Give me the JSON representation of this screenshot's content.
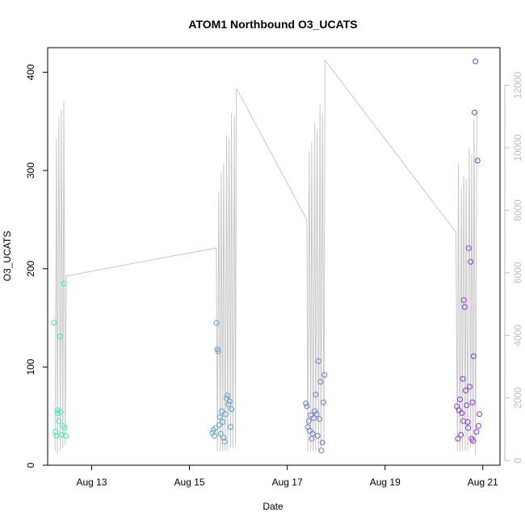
{
  "chart_data": {
    "type": "scatter",
    "title": "ATOM1 Northbound O3_UCATS",
    "xlabel": "Date",
    "ylabel": "O3_UCATS",
    "y2label": "",
    "xlim": [
      12.1,
      21.35
    ],
    "ylim": [
      0,
      425
    ],
    "y2lim": [
      -150,
      13200
    ],
    "x_ticks": [
      {
        "value": 13,
        "label": "Aug 13"
      },
      {
        "value": 15,
        "label": "Aug 15"
      },
      {
        "value": 17,
        "label": "Aug 17"
      },
      {
        "value": 19,
        "label": "Aug 19"
      },
      {
        "value": 21,
        "label": "Aug 21"
      }
    ],
    "y_ticks": [
      0,
      100,
      200,
      300,
      400
    ],
    "y2_ticks": [
      0,
      2000,
      4000,
      6000,
      8000,
      10000,
      12000
    ],
    "grid": false,
    "line_color": "#c8c8c8",
    "point_color_start": "#3ff0b4",
    "point_color_end": "#8a28e6",
    "altitude_line": [
      [
        12.25,
        300
      ],
      [
        12.28,
        10300
      ],
      [
        12.3,
        200
      ],
      [
        12.33,
        11000
      ],
      [
        12.36,
        300
      ],
      [
        12.38,
        11200
      ],
      [
        12.41,
        400
      ],
      [
        12.43,
        11500
      ],
      [
        12.46,
        500
      ],
      [
        12.48,
        5900
      ],
      [
        15.55,
        6800
      ],
      [
        15.57,
        300
      ],
      [
        15.6,
        8600
      ],
      [
        15.63,
        300
      ],
      [
        15.65,
        9200
      ],
      [
        15.68,
        300
      ],
      [
        15.7,
        9500
      ],
      [
        15.73,
        300
      ],
      [
        15.76,
        10400
      ],
      [
        15.78,
        300
      ],
      [
        15.81,
        10300
      ],
      [
        15.84,
        400
      ],
      [
        15.86,
        11100
      ],
      [
        15.89,
        400
      ],
      [
        15.92,
        11000
      ],
      [
        15.94,
        500
      ],
      [
        15.96,
        11900
      ],
      [
        17.4,
        7700
      ],
      [
        17.42,
        300
      ],
      [
        17.45,
        9900
      ],
      [
        17.48,
        300
      ],
      [
        17.5,
        10200
      ],
      [
        17.53,
        300
      ],
      [
        17.56,
        10800
      ],
      [
        17.58,
        300
      ],
      [
        17.61,
        10600
      ],
      [
        17.64,
        300
      ],
      [
        17.67,
        11400
      ],
      [
        17.69,
        400
      ],
      [
        17.72,
        11100
      ],
      [
        17.75,
        500
      ],
      [
        17.77,
        12800
      ],
      [
        20.45,
        7300
      ],
      [
        20.48,
        300
      ],
      [
        20.5,
        9500
      ],
      [
        20.53,
        300
      ],
      [
        20.56,
        8700
      ],
      [
        20.58,
        300
      ],
      [
        20.61,
        9100
      ],
      [
        20.64,
        300
      ],
      [
        20.66,
        9000
      ],
      [
        20.69,
        300
      ],
      [
        20.72,
        10000
      ],
      [
        20.75,
        400
      ],
      [
        20.77,
        9800
      ],
      [
        20.8,
        500
      ],
      [
        20.82,
        10900
      ],
      [
        20.85,
        200
      ],
      [
        20.88,
        11200
      ]
    ],
    "points": [
      [
        12.23,
        145
      ],
      [
        12.26,
        34
      ],
      [
        12.28,
        30
      ],
      [
        12.3,
        56
      ],
      [
        12.31,
        53
      ],
      [
        12.33,
        45
      ],
      [
        12.35,
        131
      ],
      [
        12.37,
        54
      ],
      [
        12.39,
        31
      ],
      [
        12.41,
        40
      ],
      [
        12.43,
        185
      ],
      [
        12.45,
        38
      ],
      [
        12.47,
        30
      ],
      [
        15.47,
        33
      ],
      [
        15.49,
        36
      ],
      [
        15.51,
        30
      ],
      [
        15.53,
        38
      ],
      [
        15.55,
        145
      ],
      [
        15.57,
        118
      ],
      [
        15.59,
        116
      ],
      [
        15.61,
        41
      ],
      [
        15.62,
        49
      ],
      [
        15.64,
        32
      ],
      [
        15.66,
        55
      ],
      [
        15.68,
        44
      ],
      [
        15.7,
        28
      ],
      [
        15.72,
        24
      ],
      [
        15.74,
        52
      ],
      [
        15.76,
        68
      ],
      [
        15.78,
        71
      ],
      [
        15.8,
        62
      ],
      [
        15.82,
        65
      ],
      [
        15.84,
        39
      ],
      [
        15.86,
        57
      ],
      [
        17.38,
        63
      ],
      [
        17.4,
        60
      ],
      [
        17.42,
        39
      ],
      [
        17.44,
        45
      ],
      [
        17.46,
        35
      ],
      [
        17.48,
        51
      ],
      [
        17.5,
        27
      ],
      [
        17.52,
        32
      ],
      [
        17.54,
        48
      ],
      [
        17.56,
        55
      ],
      [
        17.58,
        72
      ],
      [
        17.6,
        52
      ],
      [
        17.62,
        30
      ],
      [
        17.64,
        106
      ],
      [
        17.66,
        47
      ],
      [
        17.68,
        85
      ],
      [
        17.7,
        15
      ],
      [
        17.72,
        23
      ],
      [
        17.74,
        64
      ],
      [
        17.76,
        92
      ],
      [
        20.47,
        60
      ],
      [
        20.49,
        27
      ],
      [
        20.51,
        56
      ],
      [
        20.53,
        67
      ],
      [
        20.55,
        31
      ],
      [
        20.57,
        53
      ],
      [
        20.59,
        88
      ],
      [
        20.61,
        168
      ],
      [
        20.63,
        161
      ],
      [
        20.65,
        76
      ],
      [
        20.67,
        61
      ],
      [
        20.69,
        44
      ],
      [
        20.71,
        221
      ],
      [
        20.73,
        80
      ],
      [
        20.75,
        207
      ],
      [
        20.77,
        27
      ],
      [
        20.79,
        64
      ],
      [
        20.81,
        111
      ],
      [
        20.83,
        359
      ],
      [
        20.85,
        411
      ],
      [
        20.87,
        34
      ],
      [
        20.89,
        310
      ],
      [
        20.91,
        40
      ],
      [
        20.93,
        52
      ],
      [
        20.6,
        45
      ],
      [
        20.7,
        38
      ],
      [
        20.8,
        25
      ]
    ]
  }
}
